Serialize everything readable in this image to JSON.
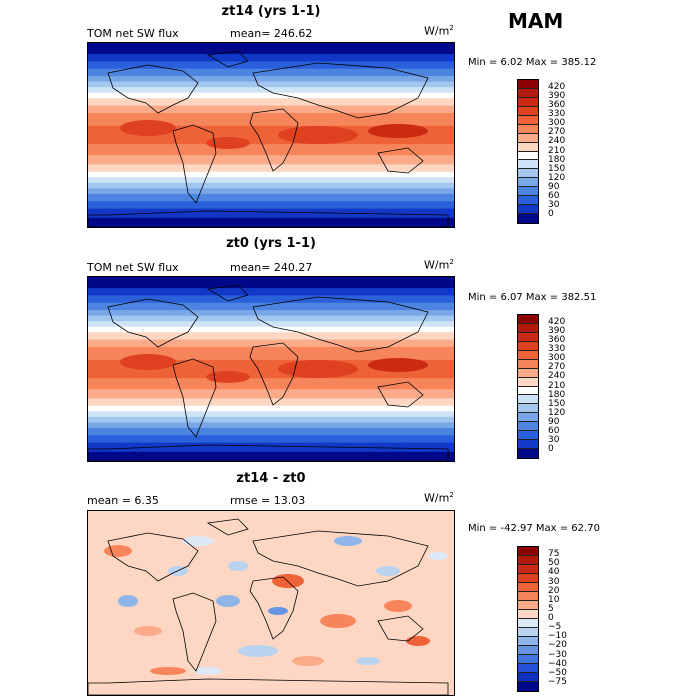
{
  "season": "MAM",
  "flux_scale": {
    "labels": [
      "420",
      "390",
      "360",
      "330",
      "300",
      "270",
      "240",
      "210",
      "180",
      "150",
      "120",
      "90",
      "60",
      "30",
      "0"
    ],
    "colors": [
      "#8b0000",
      "#b11a0d",
      "#cc2a12",
      "#df4020",
      "#ee6238",
      "#f7855c",
      "#fbab8a",
      "#fdd7c4",
      "#ffffff",
      "#cfe3f8",
      "#a3c6ef",
      "#79a6e6",
      "#4d84df",
      "#2a61da",
      "#1238c8",
      "#00088a"
    ]
  },
  "diff_scale": {
    "labels": [
      "75",
      "50",
      "40",
      "30",
      "20",
      "10",
      "5",
      "0",
      "−5",
      "−10",
      "−20",
      "−30",
      "−40",
      "−50",
      "−75"
    ],
    "colors": [
      "#8b0000",
      "#b11a0d",
      "#cc2a12",
      "#df4020",
      "#ee6238",
      "#f7855c",
      "#fbab8a",
      "#fdd7c4",
      "#dde9f7",
      "#b8d2f0",
      "#8db5e8",
      "#6795e2",
      "#4274dd",
      "#2450d5",
      "#1030c0",
      "#00088a"
    ]
  },
  "panels": [
    {
      "title": "zt14 (yrs 1-1)",
      "left_label": "TOM net SW flux",
      "mid_label": "mean=  246.62",
      "unit": "W/m",
      "unit_exp": "2",
      "minmax": "Min =    6.02 Max = 385.12",
      "scale": "flux"
    },
    {
      "title": "zt0 (yrs 1-1)",
      "left_label": "TOM net SW flux",
      "mid_label": "mean=  240.27",
      "unit": "W/m",
      "unit_exp": "2",
      "minmax": "Min =    6.07 Max = 382.51",
      "scale": "flux"
    },
    {
      "title": "zt14 - zt0",
      "left_label": "mean =    6.35",
      "mid_label": "rmse =   13.03",
      "unit": "W/m",
      "unit_exp": "2",
      "minmax": "Min = -42.97  Max =  62.70",
      "scale": "diff"
    }
  ],
  "chart_data": [
    {
      "type": "heatmap",
      "title": "zt14 (yrs 1-1)",
      "variable": "TOM net SW flux",
      "units": "W/m2",
      "mean": 246.62,
      "min": 6.02,
      "max": 385.12,
      "contour_levels": [
        0,
        30,
        60,
        90,
        120,
        150,
        180,
        210,
        240,
        270,
        300,
        330,
        360,
        390,
        420
      ]
    },
    {
      "type": "heatmap",
      "title": "zt0 (yrs 1-1)",
      "variable": "TOM net SW flux",
      "units": "W/m2",
      "mean": 240.27,
      "min": 6.07,
      "max": 382.51,
      "contour_levels": [
        0,
        30,
        60,
        90,
        120,
        150,
        180,
        210,
        240,
        270,
        300,
        330,
        360,
        390,
        420
      ]
    },
    {
      "type": "heatmap",
      "title": "zt14 - zt0",
      "units": "W/m2",
      "mean": 6.35,
      "rmse": 13.03,
      "min": -42.97,
      "max": 62.7,
      "contour_levels": [
        -75,
        -50,
        -40,
        -30,
        -20,
        -10,
        -5,
        0,
        5,
        10,
        20,
        30,
        40,
        50,
        75
      ]
    }
  ]
}
